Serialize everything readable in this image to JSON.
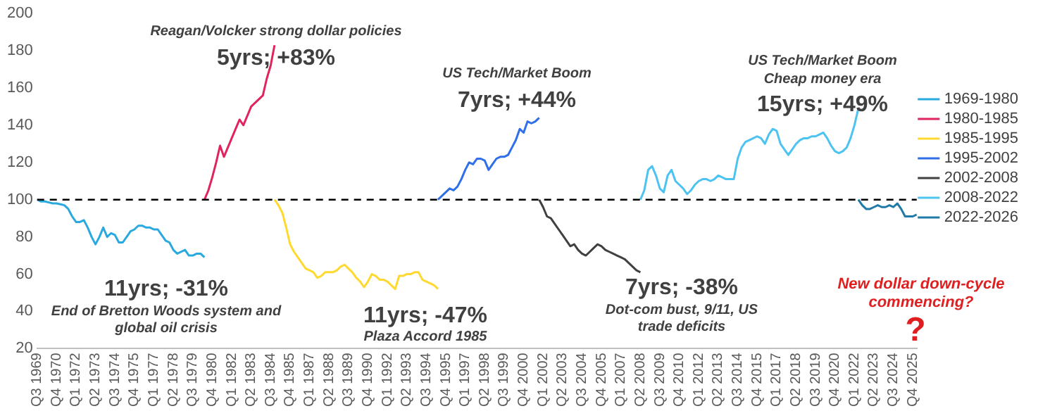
{
  "chart_data": {
    "type": "line",
    "legend": "right",
    "marker": "none",
    "line_style": "solid",
    "ylim": [
      20,
      200
    ],
    "yticks": [
      20,
      40,
      60,
      80,
      100,
      120,
      140,
      160,
      180,
      200
    ],
    "xlim": [
      "1969-07",
      "2026-01"
    ],
    "xticks": [
      {
        "value": "1969-07",
        "label": "Q3 1969"
      },
      {
        "value": "1970-10",
        "label": "Q4 1970"
      },
      {
        "value": "1972-01",
        "label": "Q1 1972"
      },
      {
        "value": "1973-04",
        "label": "Q2 1973"
      },
      {
        "value": "1974-07",
        "label": "Q3 1974"
      },
      {
        "value": "1975-10",
        "label": "Q4 1975"
      },
      {
        "value": "1977-01",
        "label": "Q1 1977"
      },
      {
        "value": "1978-04",
        "label": "Q2 1978"
      },
      {
        "value": "1979-07",
        "label": "Q3 1979"
      },
      {
        "value": "1980-10",
        "label": "Q4 1980"
      },
      {
        "value": "1982-01",
        "label": "Q1 1982"
      },
      {
        "value": "1983-04",
        "label": "Q2 1983"
      },
      {
        "value": "1984-07",
        "label": "Q3 1984"
      },
      {
        "value": "1985-10",
        "label": "Q4 1985"
      },
      {
        "value": "1987-01",
        "label": "Q1 1987"
      },
      {
        "value": "1988-04",
        "label": "Q2 1988"
      },
      {
        "value": "1989-07",
        "label": "Q3 1989"
      },
      {
        "value": "1990-10",
        "label": "Q4 1990"
      },
      {
        "value": "1992-01",
        "label": "Q1 1992"
      },
      {
        "value": "1993-04",
        "label": "Q2 1993"
      },
      {
        "value": "1994-07",
        "label": "Q3 1994"
      },
      {
        "value": "1995-10",
        "label": "Q4 1995"
      },
      {
        "value": "1997-01",
        "label": "Q1 1997"
      },
      {
        "value": "1998-04",
        "label": "Q2 1998"
      },
      {
        "value": "1999-07",
        "label": "Q3 1999"
      },
      {
        "value": "2000-10",
        "label": "Q4 2000"
      },
      {
        "value": "2002-01",
        "label": "Q1 2002"
      },
      {
        "value": "2003-04",
        "label": "Q2 2003"
      },
      {
        "value": "2004-07",
        "label": "Q3 2004"
      },
      {
        "value": "2005-10",
        "label": "Q4 2005"
      },
      {
        "value": "2007-01",
        "label": "Q1 2007"
      },
      {
        "value": "2008-04",
        "label": "Q2 2008"
      },
      {
        "value": "2009-07",
        "label": "Q3 2009"
      },
      {
        "value": "2010-10",
        "label": "Q4 2010"
      },
      {
        "value": "2012-01",
        "label": "Q1 2012"
      },
      {
        "value": "2013-04",
        "label": "Q2 2013"
      },
      {
        "value": "2014-07",
        "label": "Q3 2014"
      },
      {
        "value": "2015-10",
        "label": "Q4 2015"
      },
      {
        "value": "2017-01",
        "label": "Q1 2017"
      },
      {
        "value": "2018-04",
        "label": "Q2 2018"
      },
      {
        "value": "2019-07",
        "label": "Q3 2019"
      },
      {
        "value": "2020-10",
        "label": "Q4 2020"
      },
      {
        "value": "2022-01",
        "label": "Q1 2022"
      },
      {
        "value": "2023-04",
        "label": "Q2 2023"
      },
      {
        "value": "2024-07",
        "label": "Q3 2024"
      },
      {
        "value": "2025-10",
        "label": "Q4 2025"
      }
    ],
    "ref_lines": [
      {
        "axis": "y",
        "value": 100,
        "color": "#000000",
        "line_style": "dashed"
      }
    ],
    "annotations": [
      "Reagan/Volcker strong dollar policies",
      "5yrs; +83%",
      "US Tech/Market Boom",
      "7yrs; +44%",
      "US Tech/Market Boom",
      "Cheap money era",
      "15yrs; +49%",
      "11yrs; -31%",
      "End of Bretton Woods system and global oil crisis",
      "11yrs; -47%",
      "Plaza Accord 1985",
      "7yrs; -38%",
      "Dot-com bust, 9/11, US trade deficits",
      "New dollar down-cycle commencing?",
      "?"
    ],
    "series": [
      {
        "name": "1969-1980",
        "color": "#29a9e0",
        "x": [
          "1969-07",
          "1969-10",
          "1970-01",
          "1970-04",
          "1970-07",
          "1970-10",
          "1971-01",
          "1971-04",
          "1971-07",
          "1971-10",
          "1972-01",
          "1972-04",
          "1972-07",
          "1972-10",
          "1973-01",
          "1973-04",
          "1973-07",
          "1973-10",
          "1974-01",
          "1974-04",
          "1974-07",
          "1974-10",
          "1975-01",
          "1975-04",
          "1975-07",
          "1975-10",
          "1976-01",
          "1976-04",
          "1976-07",
          "1976-10",
          "1977-01",
          "1977-04",
          "1977-07",
          "1977-10",
          "1978-01",
          "1978-04",
          "1978-07",
          "1978-10",
          "1979-01",
          "1979-04",
          "1979-07",
          "1979-10",
          "1980-01",
          "1980-04"
        ],
        "values": [
          100,
          99,
          99,
          98.5,
          98,
          98,
          97.5,
          97,
          95,
          91,
          88,
          88,
          89,
          85,
          80,
          76,
          80,
          85,
          80,
          82,
          81,
          77,
          77,
          80,
          83,
          84,
          86,
          86,
          85,
          85,
          84,
          84,
          81,
          78,
          77,
          73,
          71,
          72,
          73,
          70,
          70,
          71,
          71,
          69
        ]
      },
      {
        "name": "1980-1985",
        "color": "#e0245e",
        "x": [
          "1980-04",
          "1980-07",
          "1980-10",
          "1981-01",
          "1981-04",
          "1981-07",
          "1981-10",
          "1982-01",
          "1982-04",
          "1982-07",
          "1982-10",
          "1983-01",
          "1983-04",
          "1983-07",
          "1983-10",
          "1984-01",
          "1984-04",
          "1984-07",
          "1984-10"
        ],
        "values": [
          100,
          105,
          112,
          120,
          129,
          123,
          128,
          133,
          138,
          143,
          140,
          145,
          150,
          152,
          154,
          156,
          165,
          172,
          183
        ]
      },
      {
        "name": "1985-1995",
        "color": "#ffd92f",
        "x": [
          "1984-10",
          "1985-01",
          "1985-04",
          "1985-07",
          "1985-10",
          "1986-01",
          "1986-04",
          "1986-07",
          "1986-10",
          "1987-01",
          "1987-04",
          "1987-07",
          "1987-10",
          "1988-01",
          "1988-04",
          "1988-07",
          "1988-10",
          "1989-01",
          "1989-04",
          "1989-07",
          "1989-10",
          "1990-01",
          "1990-04",
          "1990-07",
          "1990-10",
          "1991-01",
          "1991-04",
          "1991-07",
          "1991-10",
          "1992-01",
          "1992-04",
          "1992-07",
          "1992-10",
          "1993-01",
          "1993-04",
          "1993-07",
          "1993-10",
          "1994-01",
          "1994-04",
          "1994-07",
          "1994-10",
          "1995-01",
          "1995-04"
        ],
        "values": [
          100,
          97,
          93,
          85,
          76,
          72,
          69,
          66,
          63,
          62,
          61,
          58,
          59,
          61,
          61,
          61,
          62,
          64,
          65,
          63,
          61,
          58,
          56,
          53,
          56,
          60,
          59,
          57,
          57,
          56,
          54,
          52,
          59,
          59,
          60,
          60,
          61,
          61,
          57,
          56,
          55,
          54,
          52
        ]
      },
      {
        "name": "1995-2002",
        "color": "#2f6fe8",
        "x": [
          "1995-04",
          "1995-07",
          "1995-10",
          "1996-01",
          "1996-04",
          "1996-07",
          "1996-10",
          "1997-01",
          "1997-04",
          "1997-07",
          "1997-10",
          "1998-01",
          "1998-04",
          "1998-07",
          "1998-10",
          "1999-01",
          "1999-04",
          "1999-07",
          "1999-10",
          "2000-01",
          "2000-04",
          "2000-07",
          "2000-10",
          "2001-01",
          "2001-04",
          "2001-07",
          "2001-10"
        ],
        "values": [
          100,
          102,
          104,
          106,
          105,
          107,
          111,
          116,
          120,
          119,
          122,
          122,
          121,
          116,
          119,
          122,
          123,
          123,
          124,
          128,
          132,
          138,
          136,
          142,
          141,
          142,
          144
        ]
      },
      {
        "name": "2002-2008",
        "color": "#404040",
        "x": [
          "2001-10",
          "2002-01",
          "2002-04",
          "2002-07",
          "2002-10",
          "2003-01",
          "2003-04",
          "2003-07",
          "2003-10",
          "2004-01",
          "2004-04",
          "2004-07",
          "2004-10",
          "2005-01",
          "2005-04",
          "2005-07",
          "2005-10",
          "2006-01",
          "2006-04",
          "2006-07",
          "2006-10",
          "2007-01",
          "2007-04",
          "2007-07",
          "2007-10",
          "2008-01",
          "2008-04"
        ],
        "values": [
          100,
          96,
          91,
          90,
          87,
          84,
          81,
          78,
          75,
          76,
          73,
          71,
          70,
          72,
          74,
          76,
          75,
          73,
          72,
          71,
          70,
          69,
          68,
          66,
          64,
          62,
          61
        ]
      },
      {
        "name": "2008-2022",
        "color": "#4cc3f0",
        "x": [
          "2008-04",
          "2008-07",
          "2008-10",
          "2009-01",
          "2009-04",
          "2009-07",
          "2009-10",
          "2010-01",
          "2010-04",
          "2010-07",
          "2010-10",
          "2011-01",
          "2011-04",
          "2011-07",
          "2011-10",
          "2012-01",
          "2012-04",
          "2012-07",
          "2012-10",
          "2013-01",
          "2013-04",
          "2013-07",
          "2013-10",
          "2014-01",
          "2014-04",
          "2014-07",
          "2014-10",
          "2015-01",
          "2015-04",
          "2015-07",
          "2015-10",
          "2016-01",
          "2016-04",
          "2016-07",
          "2016-10",
          "2017-01",
          "2017-04",
          "2017-07",
          "2017-10",
          "2018-01",
          "2018-04",
          "2018-07",
          "2018-10",
          "2019-01",
          "2019-04",
          "2019-07",
          "2019-10",
          "2020-01",
          "2020-04",
          "2020-07",
          "2020-10",
          "2021-01",
          "2021-04",
          "2021-07",
          "2021-10",
          "2022-01",
          "2022-04"
        ],
        "values": [
          100,
          105,
          116,
          118,
          113,
          106,
          104,
          113,
          116,
          110,
          108,
          106,
          103,
          105,
          108,
          110,
          111,
          111,
          110,
          111,
          113,
          112,
          111,
          111,
          111,
          122,
          128,
          131,
          132,
          133,
          134,
          133,
          130,
          135,
          138,
          137,
          130,
          127,
          124,
          127,
          130,
          132,
          133,
          133,
          134,
          134,
          135,
          136,
          133,
          129,
          126,
          125,
          126,
          128,
          133,
          140,
          149
        ]
      },
      {
        "name": "2022-2026",
        "color": "#1f7aa8",
        "x": [
          "2022-04",
          "2022-07",
          "2022-10",
          "2023-01",
          "2023-04",
          "2023-07",
          "2023-10",
          "2024-01",
          "2024-04",
          "2024-07",
          "2024-10",
          "2025-01",
          "2025-04",
          "2025-07",
          "2025-10",
          "2026-01"
        ],
        "values": [
          100,
          97,
          95,
          95,
          96,
          97,
          96,
          96,
          97,
          96,
          98,
          95,
          91,
          91,
          91,
          92
        ]
      }
    ]
  }
}
